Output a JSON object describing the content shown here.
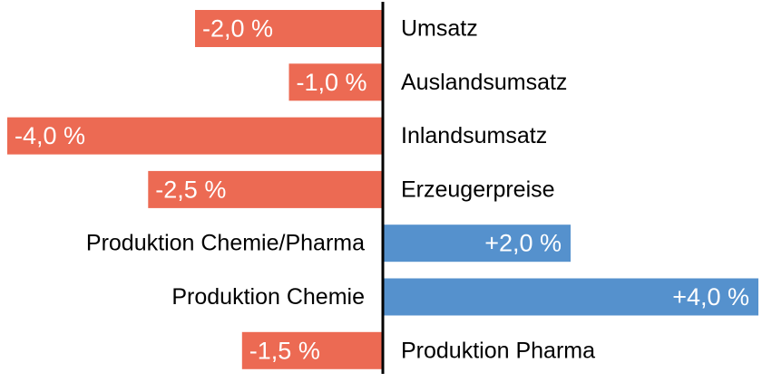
{
  "chart_data": {
    "type": "bar",
    "orientation": "horizontal",
    "categories": [
      "Umsatz",
      "Auslandsumsatz",
      "Inlandsumsatz",
      "Erzeugerpreise",
      "Produktion Chemie/Pharma",
      "Produktion Chemie",
      "Produktion Pharma"
    ],
    "values": [
      -2.0,
      -1.0,
      -4.0,
      -2.5,
      2.0,
      4.0,
      -1.5
    ],
    "value_labels": [
      "-2,0 %",
      "-1,0 %",
      "-4,0 %",
      "-2,5 %",
      "+2,0 %",
      "+4,0 %",
      "-1,5 %"
    ],
    "xlim": [
      -4.0,
      4.0
    ],
    "title": "",
    "xlabel": "",
    "ylabel": "",
    "grid": false,
    "colors": {
      "negative": "#ec6a53",
      "positive": "#5591cd",
      "axis": "#000000"
    }
  }
}
